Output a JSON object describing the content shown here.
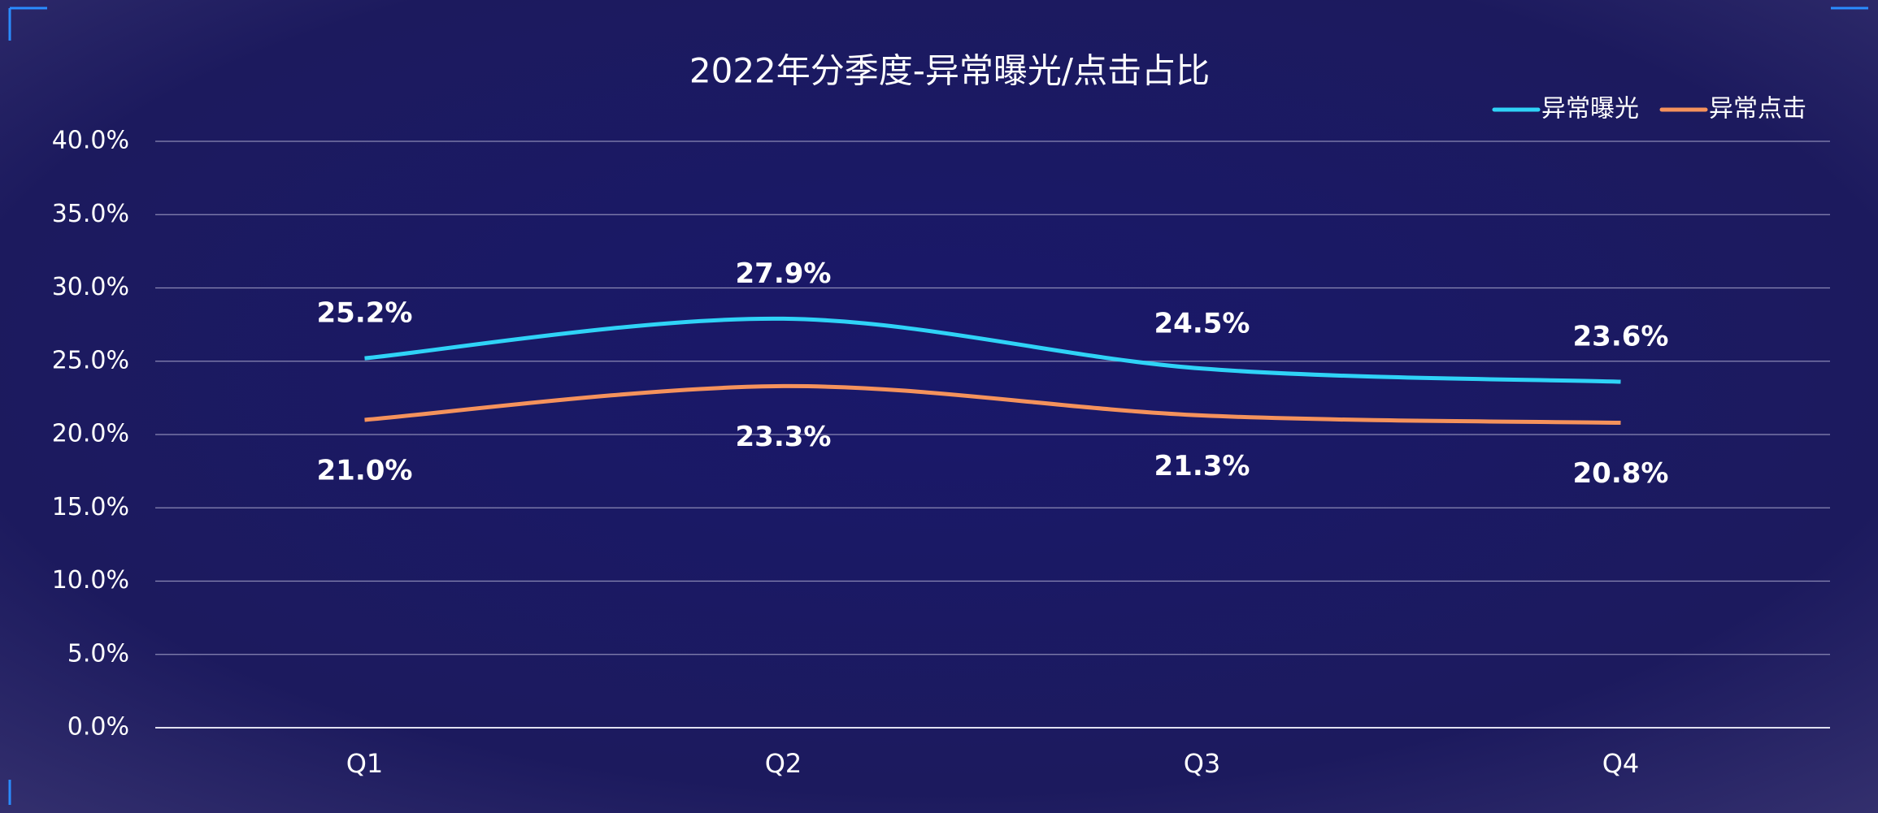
{
  "chart_data": {
    "type": "line",
    "title": "2022年分季度-异常曝光/点击占比",
    "categories": [
      "Q1",
      "Q2",
      "Q3",
      "Q4"
    ],
    "series": [
      {
        "name": "异常曝光",
        "color": "#2fd3f7",
        "values": [
          25.2,
          27.9,
          24.5,
          23.6
        ],
        "value_labels": [
          "25.2%",
          "27.9%",
          "24.5%",
          "23.6%"
        ]
      },
      {
        "name": "异常点击",
        "color": "#f5925c",
        "values": [
          21.0,
          23.3,
          21.3,
          20.8
        ],
        "value_labels": [
          "21.0%",
          "23.3%",
          "21.3%",
          "20.8%"
        ]
      }
    ],
    "ylim": [
      0,
      40
    ],
    "yticks": [
      {
        "value": 0,
        "label": "0.0%"
      },
      {
        "value": 5,
        "label": "5.0%"
      },
      {
        "value": 10,
        "label": "10.0%"
      },
      {
        "value": 15,
        "label": "15.0%"
      },
      {
        "value": 20,
        "label": "20.0%"
      },
      {
        "value": 25,
        "label": "25.0%"
      },
      {
        "value": 30,
        "label": "30.0%"
      },
      {
        "value": 35,
        "label": "35.0%"
      },
      {
        "value": 40,
        "label": "40.0%"
      }
    ],
    "grid": true,
    "legend": "top-right",
    "smooth": true
  }
}
